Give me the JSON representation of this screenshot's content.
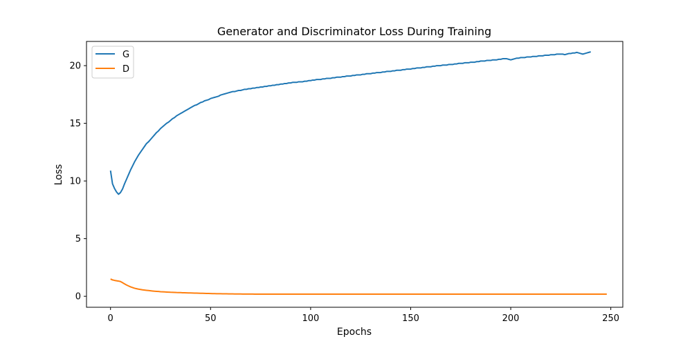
{
  "chart_data": {
    "type": "line",
    "title": "Generator and Discriminator Loss During Training",
    "xlabel": "Epochs",
    "ylabel": "Loss",
    "xlim": [
      -12,
      256
    ],
    "ylim": [
      -0.95,
      22.1
    ],
    "xticks": [
      0,
      50,
      100,
      150,
      200,
      250
    ],
    "yticks": [
      0,
      5,
      10,
      15,
      20
    ],
    "grid": false,
    "legend": "top-left",
    "series": [
      {
        "name": "G",
        "color": "#1f77b4",
        "values": [
          10.9,
          9.75,
          9.35,
          9.05,
          8.85,
          9.0,
          9.3,
          9.75,
          10.15,
          10.55,
          10.95,
          11.3,
          11.65,
          11.95,
          12.25,
          12.5,
          12.75,
          13.0,
          13.25,
          13.4,
          13.6,
          13.8,
          14.0,
          14.2,
          14.35,
          14.55,
          14.7,
          14.85,
          15.0,
          15.1,
          15.25,
          15.4,
          15.5,
          15.65,
          15.75,
          15.85,
          15.95,
          16.05,
          16.15,
          16.25,
          16.35,
          16.45,
          16.55,
          16.6,
          16.7,
          16.8,
          16.85,
          16.95,
          17.0,
          17.05,
          17.15,
          17.2,
          17.25,
          17.3,
          17.35,
          17.45,
          17.5,
          17.55,
          17.6,
          17.65,
          17.7,
          17.75,
          17.75,
          17.8,
          17.85,
          17.85,
          17.9,
          17.95,
          17.95,
          18.0,
          18.0,
          18.05,
          18.05,
          18.1,
          18.1,
          18.15,
          18.15,
          18.2,
          18.2,
          18.25,
          18.25,
          18.3,
          18.3,
          18.35,
          18.35,
          18.4,
          18.4,
          18.45,
          18.45,
          18.5,
          18.5,
          18.55,
          18.55,
          18.55,
          18.6,
          18.6,
          18.6,
          18.65,
          18.65,
          18.7,
          18.7,
          18.75,
          18.75,
          18.8,
          18.8,
          18.8,
          18.85,
          18.85,
          18.9,
          18.9,
          18.9,
          18.95,
          18.95,
          19.0,
          19.0,
          19.0,
          19.05,
          19.05,
          19.1,
          19.1,
          19.1,
          19.15,
          19.15,
          19.2,
          19.2,
          19.2,
          19.25,
          19.25,
          19.3,
          19.3,
          19.3,
          19.35,
          19.35,
          19.4,
          19.4,
          19.4,
          19.45,
          19.45,
          19.5,
          19.5,
          19.5,
          19.55,
          19.55,
          19.6,
          19.6,
          19.6,
          19.65,
          19.65,
          19.7,
          19.7,
          19.7,
          19.75,
          19.75,
          19.8,
          19.8,
          19.8,
          19.85,
          19.85,
          19.9,
          19.9,
          19.9,
          19.95,
          19.95,
          20.0,
          20.0,
          20.0,
          20.05,
          20.05,
          20.05,
          20.1,
          20.1,
          20.1,
          20.15,
          20.15,
          20.2,
          20.2,
          20.2,
          20.25,
          20.25,
          20.25,
          20.3,
          20.3,
          20.3,
          20.35,
          20.35,
          20.4,
          20.4,
          20.4,
          20.45,
          20.45,
          20.45,
          20.5,
          20.5,
          20.5,
          20.55,
          20.55,
          20.6,
          20.6,
          20.6,
          20.55,
          20.5,
          20.55,
          20.6,
          20.65,
          20.65,
          20.7,
          20.7,
          20.7,
          20.75,
          20.75,
          20.75,
          20.8,
          20.8,
          20.8,
          20.85,
          20.85,
          20.85,
          20.9,
          20.9,
          20.9,
          20.95,
          20.95,
          20.95,
          21.0,
          21.0,
          21.0,
          21.0,
          20.95,
          21.0,
          21.05,
          21.05,
          21.1,
          21.1,
          21.15,
          21.1,
          21.05,
          21.0,
          21.05,
          21.1,
          21.15,
          21.2
        ]
      },
      {
        "name": "D",
        "color": "#ff7f0e",
        "values": [
          1.5,
          1.42,
          1.38,
          1.35,
          1.32,
          1.28,
          1.18,
          1.08,
          0.98,
          0.9,
          0.82,
          0.76,
          0.7,
          0.66,
          0.62,
          0.59,
          0.56,
          0.54,
          0.52,
          0.5,
          0.48,
          0.46,
          0.44,
          0.43,
          0.42,
          0.4,
          0.39,
          0.38,
          0.37,
          0.36,
          0.35,
          0.345,
          0.34,
          0.33,
          0.325,
          0.32,
          0.31,
          0.305,
          0.3,
          0.295,
          0.29,
          0.285,
          0.28,
          0.275,
          0.27,
          0.265,
          0.26,
          0.255,
          0.25,
          0.245,
          0.24,
          0.235,
          0.23,
          0.228,
          0.225,
          0.222,
          0.22,
          0.218,
          0.215,
          0.212,
          0.21,
          0.208,
          0.206,
          0.204,
          0.202,
          0.2,
          0.198,
          0.196,
          0.195,
          0.194,
          0.193,
          0.192,
          0.191,
          0.19,
          0.19,
          0.19,
          0.19,
          0.19,
          0.19,
          0.19,
          0.19,
          0.19,
          0.19,
          0.19,
          0.19,
          0.19,
          0.19,
          0.19,
          0.19,
          0.19,
          0.19,
          0.19,
          0.19,
          0.19,
          0.19,
          0.19,
          0.19,
          0.19,
          0.19,
          0.19,
          0.19,
          0.19,
          0.19,
          0.19,
          0.19,
          0.19,
          0.19,
          0.19,
          0.19,
          0.19,
          0.19,
          0.19,
          0.19,
          0.19,
          0.19,
          0.19,
          0.19,
          0.19,
          0.19,
          0.19,
          0.19,
          0.19,
          0.19,
          0.19,
          0.19,
          0.19,
          0.19,
          0.19,
          0.19,
          0.19,
          0.19,
          0.19,
          0.19,
          0.19,
          0.19,
          0.19,
          0.19,
          0.19,
          0.19,
          0.19,
          0.19,
          0.19,
          0.19,
          0.19,
          0.19,
          0.19,
          0.19,
          0.19,
          0.19,
          0.19,
          0.19,
          0.19,
          0.19,
          0.19,
          0.19,
          0.19,
          0.19,
          0.19,
          0.19,
          0.19,
          0.19,
          0.19,
          0.19,
          0.19,
          0.19,
          0.19,
          0.19,
          0.19,
          0.19,
          0.19,
          0.19,
          0.19,
          0.19,
          0.19,
          0.19,
          0.19,
          0.19,
          0.19,
          0.19,
          0.19,
          0.19,
          0.19,
          0.19,
          0.19,
          0.19,
          0.19,
          0.19,
          0.19,
          0.19,
          0.19,
          0.19,
          0.19,
          0.19,
          0.19,
          0.19,
          0.19,
          0.19,
          0.19,
          0.19,
          0.19,
          0.19,
          0.19,
          0.19,
          0.19,
          0.19,
          0.19,
          0.19,
          0.19,
          0.19,
          0.19,
          0.19,
          0.19,
          0.19,
          0.19,
          0.19,
          0.19,
          0.19,
          0.19,
          0.19,
          0.19,
          0.19,
          0.19,
          0.19,
          0.19,
          0.19,
          0.19,
          0.19,
          0.19,
          0.19,
          0.19,
          0.19,
          0.19,
          0.19,
          0.19,
          0.19,
          0.19,
          0.19,
          0.19,
          0.19,
          0.19,
          0.19,
          0.19,
          0.19,
          0.19,
          0.19,
          0.19,
          0.19,
          0.19,
          0.19
        ]
      }
    ]
  }
}
